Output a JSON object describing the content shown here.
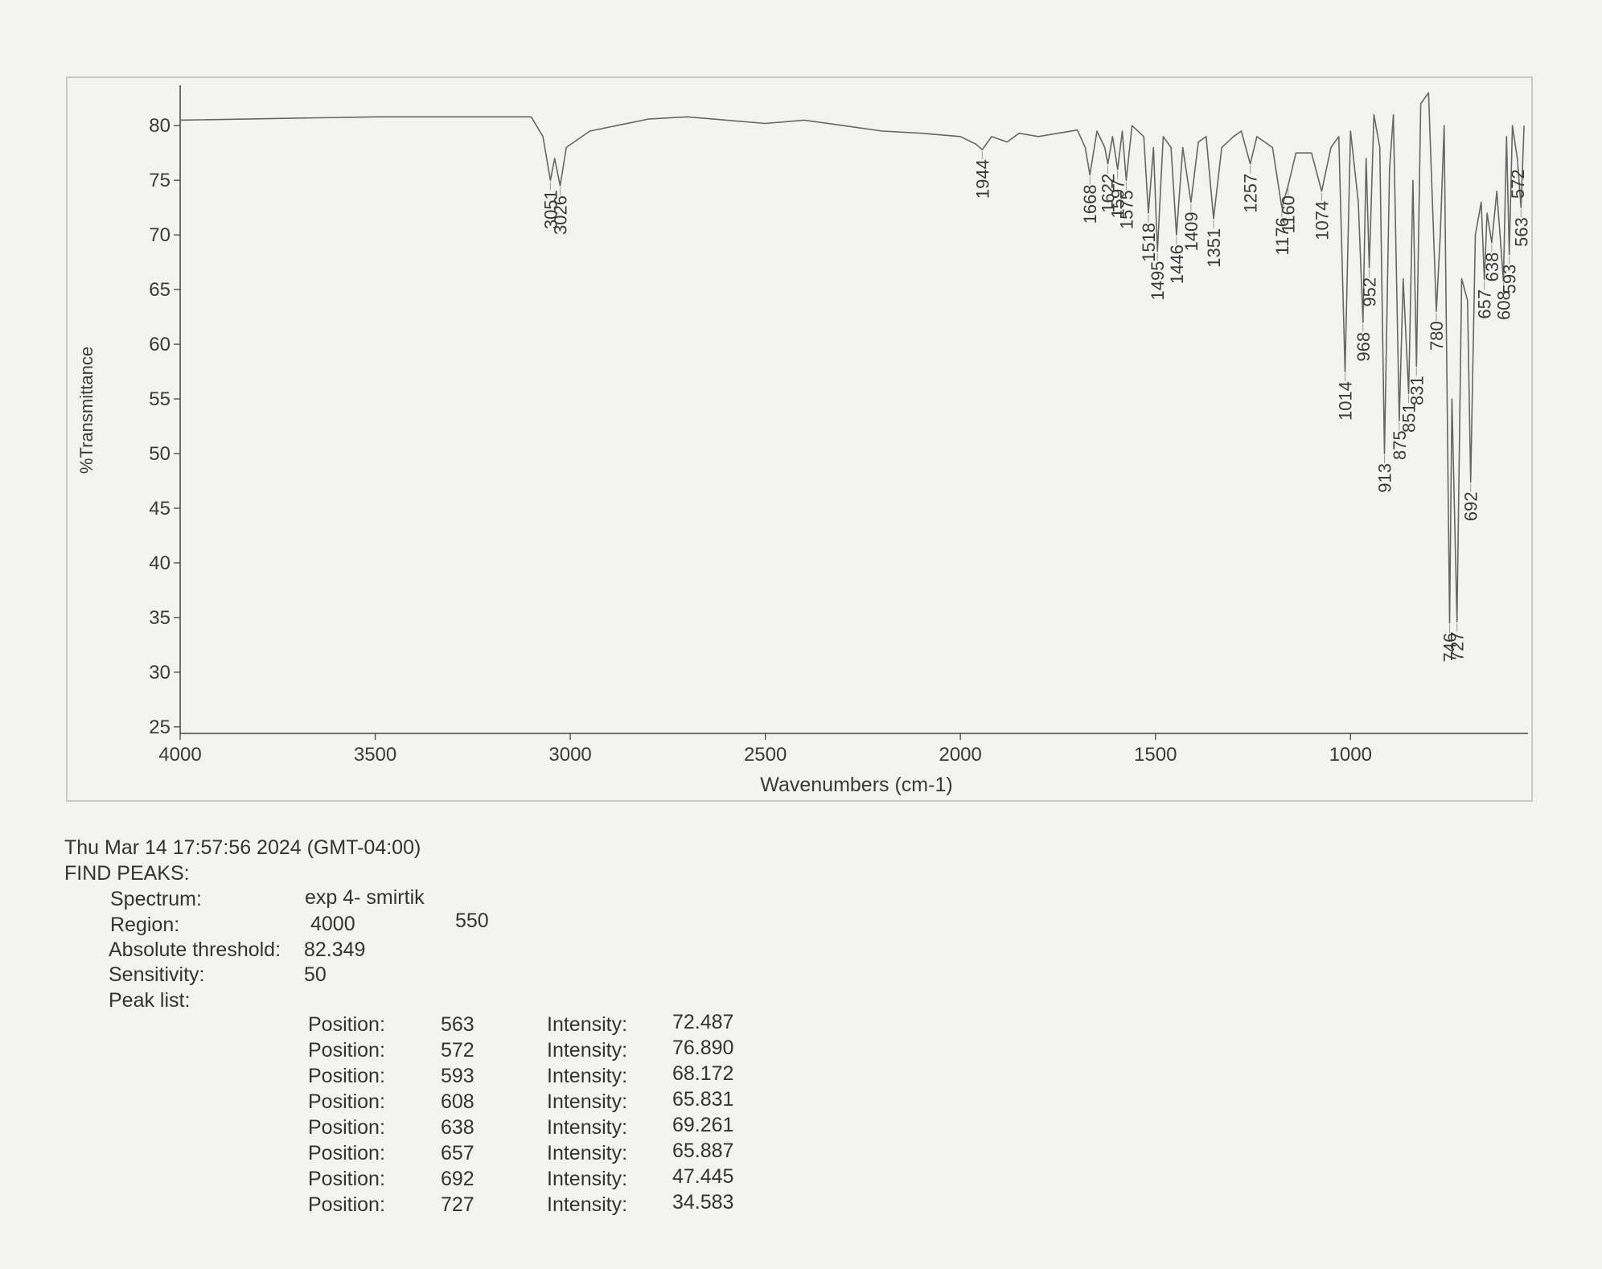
{
  "chart_data": {
    "type": "line",
    "y_label": "%Transmittance",
    "x_label": "Wavenumbers (cm-1)",
    "xlim": [
      4000,
      545
    ],
    "ylim": [
      24.4,
      83.4
    ],
    "xticks": [
      4000,
      3500,
      3000,
      2500,
      2000,
      1500,
      1000
    ],
    "yticks": [
      25,
      30,
      35,
      40,
      45,
      50,
      55,
      60,
      65,
      70,
      75,
      80
    ],
    "color": "#666666",
    "x": [
      4000,
      3500,
      3100,
      3070,
      3051,
      3040,
      3026,
      3010,
      2950,
      2800,
      2700,
      2600,
      2500,
      2400,
      2300,
      2200,
      2100,
      2000,
      1960,
      1944,
      1920,
      1880,
      1850,
      1800,
      1750,
      1700,
      1680,
      1668,
      1650,
      1630,
      1622,
      1610,
      1597,
      1585,
      1575,
      1560,
      1530,
      1518,
      1505,
      1495,
      1480,
      1460,
      1446,
      1430,
      1409,
      1390,
      1370,
      1351,
      1330,
      1300,
      1280,
      1257,
      1240,
      1200,
      1176,
      1160,
      1140,
      1100,
      1074,
      1050,
      1030,
      1014,
      1000,
      980,
      968,
      960,
      952,
      940,
      925,
      913,
      900,
      890,
      875,
      865,
      851,
      840,
      831,
      820,
      800,
      780,
      770,
      760,
      746,
      740,
      727,
      715,
      700,
      692,
      680,
      665,
      657,
      650,
      638,
      625,
      608,
      600,
      593,
      585,
      572,
      563,
      555
    ],
    "values": [
      80.5,
      80.8,
      80.8,
      79,
      75,
      77,
      74.5,
      78,
      79.5,
      80.6,
      80.8,
      80.5,
      80.2,
      80.5,
      80,
      79.5,
      79.3,
      79,
      78.3,
      77.8,
      79,
      78.5,
      79.3,
      79,
      79.3,
      79.6,
      78,
      75.5,
      79.5,
      78,
      76.5,
      79,
      76,
      79.5,
      75,
      80,
      79,
      72,
      78,
      68.5,
      79,
      78,
      70,
      78,
      73,
      78.5,
      79,
      71.5,
      78,
      79,
      79.5,
      76.5,
      79,
      78,
      72.5,
      74.5,
      77.5,
      77.5,
      74,
      78,
      79,
      57.5,
      79.5,
      73,
      62,
      77,
      67,
      81,
      78,
      50,
      76,
      81,
      53,
      66,
      55.5,
      75,
      58,
      82,
      83,
      63,
      70,
      80,
      34.5,
      55,
      34.6,
      66,
      64,
      47.4,
      70,
      73,
      65.9,
      72,
      69.3,
      74,
      65.8,
      79,
      68.2,
      80,
      76.9,
      72.5,
      80
    ],
    "peak_labels": [
      3051,
      3026,
      1944,
      1668,
      1622,
      1597,
      1575,
      1518,
      1495,
      1446,
      1409,
      1351,
      1257,
      1176,
      1160,
      1074,
      1014,
      968,
      952,
      913,
      875,
      851,
      831,
      780,
      746,
      727,
      692,
      657,
      638,
      608,
      593,
      572,
      563
    ]
  },
  "report": {
    "timestamp": "Thu Mar 14 17:57:56 2024 (GMT-04:00)",
    "heading": "FIND PEAKS:",
    "spectrum_label": "Spectrum:",
    "spectrum": "exp 4- smirtik",
    "region_label": "Region:",
    "region": [
      "4000",
      "550"
    ],
    "threshold_label": "Absolute threshold:",
    "threshold": "82.349",
    "sensitivity_label": "Sensitivity:",
    "sensitivity": "50",
    "peak_list_label": "Peak list:",
    "peak_list": [
      [
        "Position:",
        "563",
        "Intensity:",
        "72.487"
      ],
      [
        "Position:",
        "572",
        "Intensity:",
        "76.890"
      ],
      [
        "Position:",
        "593",
        "Intensity:",
        "68.172"
      ],
      [
        "Position:",
        "608",
        "Intensity:",
        "65.831"
      ],
      [
        "Position:",
        "638",
        "Intensity:",
        "69.261"
      ],
      [
        "Position:",
        "657",
        "Intensity:",
        "65.887"
      ],
      [
        "Position:",
        "692",
        "Intensity:",
        "47.445"
      ],
      [
        "Position:",
        "727",
        "Intensity:",
        "34.583"
      ]
    ]
  }
}
